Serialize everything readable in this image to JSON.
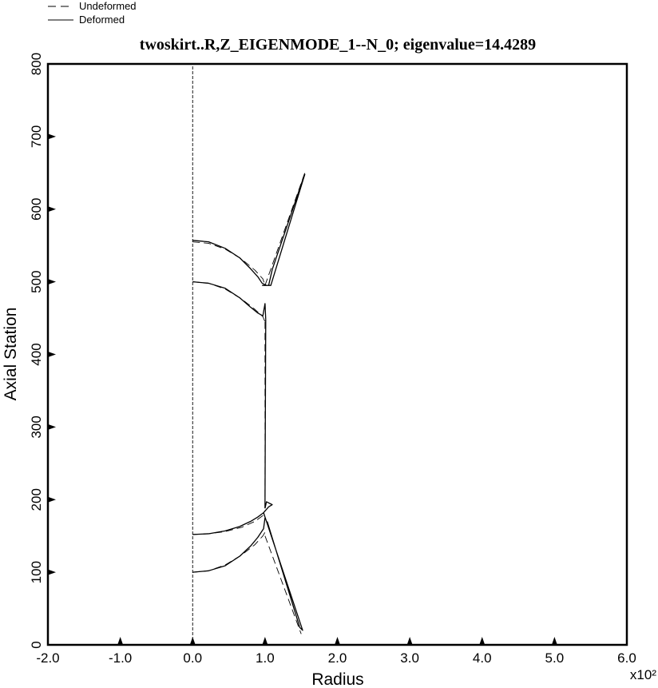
{
  "chart_data": {
    "type": "line",
    "title": "twoskirt..R,Z_EIGENMODE_1--N_0; eigenvalue=14.4289",
    "xlabel": "Radius",
    "ylabel": "Axial Station",
    "x_multiplier_label": "x10²",
    "xlim": [
      -2.0,
      6.0
    ],
    "ylim": [
      0,
      800
    ],
    "x_ticks": [
      -2.0,
      -1.0,
      0.0,
      1.0,
      2.0,
      3.0,
      4.0,
      5.0,
      6.0
    ],
    "x_tick_labels": [
      "-2.0",
      "-1.0",
      "0.0",
      "1.0",
      "2.0",
      "3.0",
      "4.0",
      "5.0",
      "6.0"
    ],
    "y_ticks": [
      0,
      100,
      200,
      300,
      400,
      500,
      600,
      700,
      800
    ],
    "y_tick_labels": [
      "0",
      "100",
      "200",
      "300",
      "400",
      "500",
      "600",
      "700",
      "800"
    ],
    "grid": false,
    "legend_position": "top-left",
    "series": [
      {
        "name": "Undeformed",
        "style": "dashed",
        "segments": [
          {
            "x": [
              0.0,
              0.0
            ],
            "y": [
              0,
              800
            ]
          },
          {
            "x": [
              0.0,
              0.22,
              0.45,
              0.68,
              0.86,
              0.97,
              1.0
            ],
            "y": [
              555,
              553,
              545,
              531,
              516,
              504,
              495
            ]
          },
          {
            "x": [
              0.0,
              0.22,
              0.45,
              0.68,
              0.86,
              0.97,
              1.0
            ],
            "y": [
              500,
              498,
              490,
              476,
              462,
              452,
              445
            ]
          },
          {
            "x": [
              1.0,
              1.0
            ],
            "y": [
              445,
              185
            ]
          },
          {
            "x": [
              1.0,
              1.55
            ],
            "y": [
              495,
              650
            ]
          },
          {
            "x": [
              0.0,
              0.22,
              0.45,
              0.68,
              0.86,
              0.97,
              1.0
            ],
            "y": [
              100,
              102,
              110,
              124,
              138,
              150,
              155
            ]
          },
          {
            "x": [
              0.0,
              0.22,
              0.45,
              0.68,
              0.86,
              0.97,
              1.0
            ],
            "y": [
              152,
              153,
              156,
              162,
              170,
              178,
              185
            ]
          },
          {
            "x": [
              1.0,
              1.5
            ],
            "y": [
              150,
              15
            ]
          }
        ]
      },
      {
        "name": "Deformed",
        "style": "solid",
        "segments": [
          {
            "x": [
              0.0,
              0.22,
              0.45,
              0.65,
              0.8,
              0.9,
              0.96,
              1.02
            ],
            "y": [
              557,
              555,
              546,
              533,
              518,
              507,
              498,
              495
            ]
          },
          {
            "x": [
              0.0,
              0.22,
              0.45,
              0.65,
              0.8,
              0.9,
              0.97,
              1.0,
              1.01
            ],
            "y": [
              500,
              498,
              491,
              478,
              465,
              457,
              453,
              470,
              448
            ]
          },
          {
            "x": [
              1.01,
              1.0,
              1.0
            ],
            "y": [
              448,
              200,
              188
            ]
          },
          {
            "x": [
              1.02,
              1.08,
              1.55,
              1.53,
              1.1,
              1.05,
              0.96
            ],
            "y": [
              495,
              495,
              648,
              643,
              517,
              495,
              495
            ]
          },
          {
            "x": [
              0.0,
              0.22,
              0.45,
              0.65,
              0.8,
              0.9,
              0.98,
              1.0
            ],
            "y": [
              100,
              102,
              109,
              122,
              136,
              148,
              160,
              175
            ]
          },
          {
            "x": [
              0.0,
              0.22,
              0.45,
              0.65,
              0.8,
              0.9,
              0.98,
              1.05,
              1.1,
              1.02,
              1.0
            ],
            "y": [
              152,
              153,
              157,
              163,
              170,
              176,
              182,
              190,
              193,
              197,
              188
            ]
          },
          {
            "x": [
              0.98,
              1.0,
              1.52,
              1.48,
              1.03
            ],
            "y": [
              182,
              176,
              20,
              24,
              170
            ]
          }
        ]
      }
    ]
  }
}
